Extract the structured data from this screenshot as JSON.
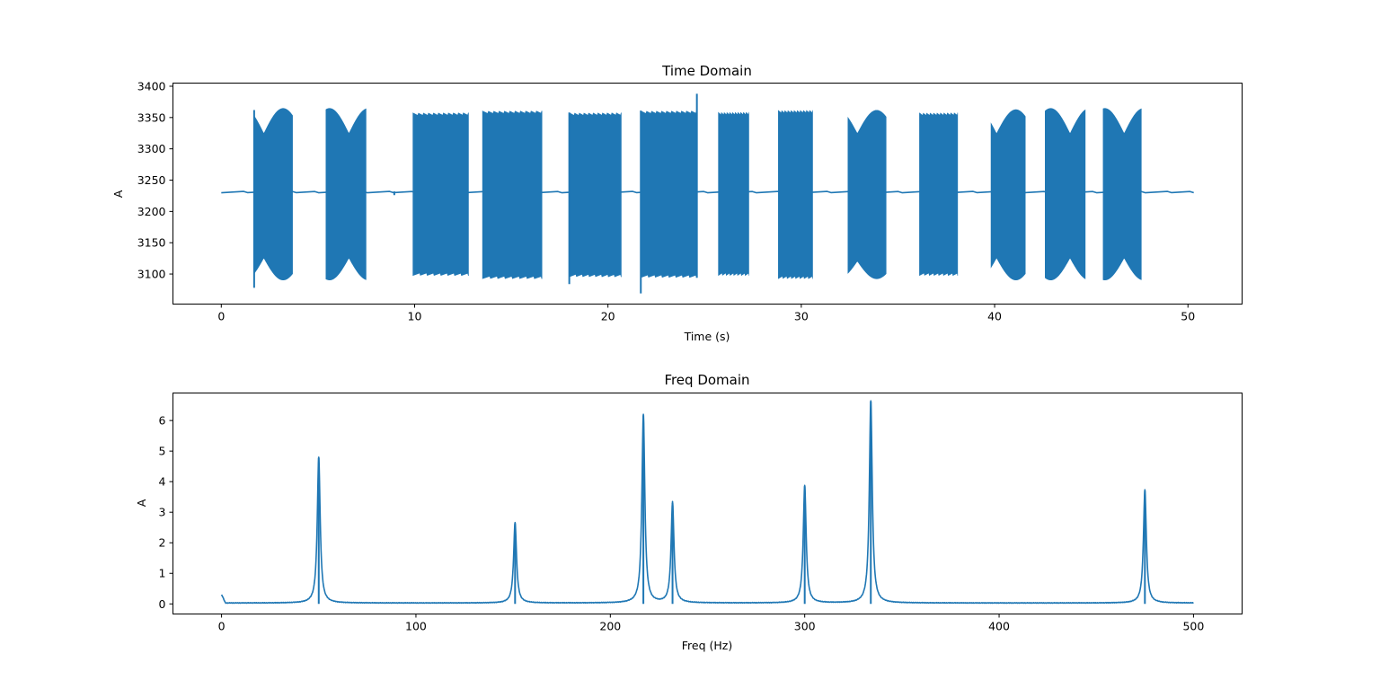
{
  "figure": {
    "line_color": "#1f77b4"
  },
  "chart_data": [
    {
      "type": "line",
      "title": "Time Domain",
      "xlabel": "Time (s)",
      "ylabel": "A",
      "xlim": [
        -2.5,
        52.8
      ],
      "ylim": [
        3052,
        3405
      ],
      "xticks": [
        0,
        10,
        20,
        30,
        40,
        50
      ],
      "yticks": [
        3100,
        3150,
        3200,
        3250,
        3300,
        3350,
        3400
      ],
      "baseline": {
        "x_start": 0,
        "x_end": 50.3,
        "value": 3231
      },
      "bursts": [
        {
          "start": 1.7,
          "end": 3.7,
          "shape": "beat",
          "max": 3365,
          "min": 3090,
          "inner_max": 3325,
          "inner_min": 3125,
          "beat_period": 2.0,
          "beat_phase": 1.2
        },
        {
          "start": 5.4,
          "end": 7.5,
          "shape": "beat",
          "max": 3365,
          "min": 3090,
          "inner_max": 3325,
          "inner_min": 3125,
          "beat_period": 2.0,
          "beat_phase": 5.6
        },
        {
          "start": 9.9,
          "end": 12.8,
          "shape": "flat",
          "max": 3358,
          "min": 3097
        },
        {
          "start": 13.5,
          "end": 16.6,
          "shape": "flat",
          "max": 3361,
          "min": 3092
        },
        {
          "start": 18.0,
          "end": 20.7,
          "shape": "flat",
          "max": 3358,
          "min": 3095
        },
        {
          "start": 21.7,
          "end": 24.6,
          "shape": "flat",
          "max": 3361,
          "min": 3094
        },
        {
          "start": 25.7,
          "end": 27.3,
          "shape": "flat",
          "max": 3359,
          "min": 3097
        },
        {
          "start": 28.8,
          "end": 30.6,
          "shape": "flat",
          "max": 3362,
          "min": 3092
        },
        {
          "start": 32.4,
          "end": 34.4,
          "shape": "beat",
          "max": 3362,
          "min": 3092,
          "inner_max": 3325,
          "inner_min": 3120,
          "beat_period": 2.0,
          "beat_phase": 31.9
        },
        {
          "start": 36.1,
          "end": 38.1,
          "shape": "flat",
          "max": 3358,
          "min": 3097
        },
        {
          "start": 39.8,
          "end": 41.6,
          "shape": "beat",
          "max": 3363,
          "min": 3090,
          "inner_max": 3325,
          "inner_min": 3125,
          "beat_period": 2.0,
          "beat_phase": 39.1
        },
        {
          "start": 42.6,
          "end": 44.7,
          "shape": "beat",
          "max": 3365,
          "min": 3090,
          "inner_max": 3325,
          "inner_min": 3125,
          "beat_period": 2.0,
          "beat_phase": 42.9
        },
        {
          "start": 45.6,
          "end": 47.6,
          "shape": "beat",
          "max": 3365,
          "min": 3090,
          "inner_max": 3325,
          "inner_min": 3125,
          "beat_period": 2.0,
          "beat_phase": 45.7
        }
      ],
      "spikes": [
        {
          "x": 1.7,
          "min": 3078,
          "max": 3362
        },
        {
          "x": 18.0,
          "min": 3084,
          "max": 3358
        },
        {
          "x": 21.7,
          "min": 3069,
          "max": 3361
        },
        {
          "x": 24.6,
          "min": 3094,
          "max": 3388
        },
        {
          "x": 8.95,
          "min": 3226,
          "max": 3232
        }
      ]
    },
    {
      "type": "line",
      "title": "Freq Domain",
      "xlabel": "Freq (Hz)",
      "ylabel": "A",
      "xlim": [
        -25,
        525
      ],
      "ylim": [
        -0.33,
        6.9
      ],
      "xticks": [
        0,
        100,
        200,
        300,
        400,
        500
      ],
      "yticks": [
        0,
        1,
        2,
        3,
        4,
        5,
        6
      ],
      "x_range": [
        0,
        500
      ],
      "noise_floor": 0.02,
      "dc_component": 0.28,
      "peaks": [
        {
          "freq": 50,
          "amp": 4.78
        },
        {
          "freq": 151,
          "amp": 2.64
        },
        {
          "freq": 217,
          "amp": 6.17
        },
        {
          "freq": 232,
          "amp": 3.3
        },
        {
          "freq": 300,
          "amp": 3.85
        },
        {
          "freq": 334,
          "amp": 6.62
        },
        {
          "freq": 475,
          "amp": 3.7
        }
      ]
    }
  ]
}
